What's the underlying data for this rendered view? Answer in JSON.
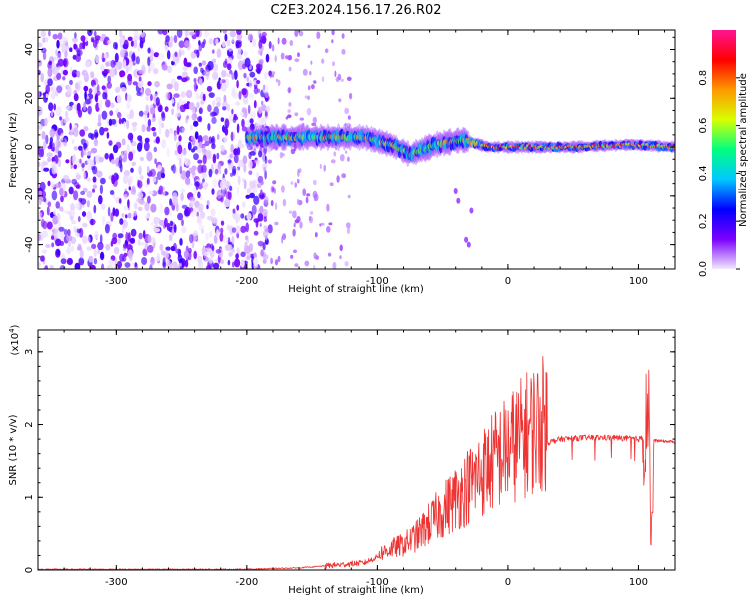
{
  "figure": {
    "title": "C2E3.2024.156.17.26.R02"
  },
  "chart_data": [
    {
      "type": "heatmap",
      "xlabel": "Height of straight line (km)",
      "ylabel": "Frequency (Hz)",
      "xlim": [
        -360,
        128
      ],
      "ylim": [
        -50,
        48
      ],
      "x_ticks": [
        -300,
        -200,
        -100,
        0,
        100
      ],
      "y_ticks": [
        -40,
        -20,
        0,
        20,
        40
      ],
      "colorbar": {
        "label": "Normalized spectral amplitude",
        "range": [
          0,
          1
        ],
        "ticks": [
          "0.0",
          "0.2",
          "0.4",
          "0.6",
          "0.8"
        ],
        "colormap": [
          "#f2e8ff",
          "#7a00ff",
          "#0000ff",
          "#00c8ff",
          "#00ff7f",
          "#d8ff00",
          "#ff9900",
          "#ff0000",
          "#ff1493"
        ]
      },
      "features": {
        "noise_region_x": [
          -360,
          -190
        ],
        "sparse_region_x": [
          -190,
          -120
        ],
        "signal_band": [
          {
            "x": -200,
            "f": 4
          },
          {
            "x": -150,
            "f": 4
          },
          {
            "x": -110,
            "f": 4
          },
          {
            "x": -90,
            "f": 1
          },
          {
            "x": -75,
            "f": -3
          },
          {
            "x": -55,
            "f": 1
          },
          {
            "x": -35,
            "f": 3
          },
          {
            "x": -15,
            "f": 0
          },
          {
            "x": 0,
            "f": 0
          },
          {
            "x": 50,
            "f": 0
          },
          {
            "x": 95,
            "f": 1
          },
          {
            "x": 128,
            "f": 0
          }
        ]
      }
    },
    {
      "type": "line",
      "xlabel": "Height of straight line (km)",
      "ylabel": "SNR (10 * v/v)",
      "y_multiplier": "(x10",
      "y_multiplier_exp": "4",
      "y_multiplier_close": ")",
      "xlim": [
        -360,
        128
      ],
      "ylim": [
        0,
        3.3
      ],
      "x_ticks": [
        -300,
        -200,
        -100,
        0,
        100
      ],
      "y_ticks": [
        0,
        1,
        2,
        3
      ],
      "color": "#ee3333",
      "series": [
        {
          "points": [
            [
              -360,
              0.01
            ],
            [
              -300,
              0.01
            ],
            [
              -250,
              0.01
            ],
            [
              -200,
              0.01
            ],
            [
              -160,
              0.03
            ],
            [
              -130,
              0.07
            ],
            [
              -110,
              0.1
            ],
            [
              -100,
              0.18
            ],
            [
              -90,
              0.25
            ],
            [
              -80,
              0.3
            ],
            [
              -70,
              0.4
            ],
            [
              -60,
              0.55
            ],
            [
              -50,
              0.7
            ],
            [
              -40,
              0.85
            ],
            [
              -30,
              1.0
            ],
            [
              -20,
              1.15
            ],
            [
              -10,
              1.3
            ],
            [
              0,
              1.42
            ],
            [
              10,
              1.55
            ],
            [
              20,
              1.68
            ],
            [
              30,
              1.75
            ],
            [
              40,
              1.8
            ],
            [
              60,
              1.82
            ],
            [
              80,
              1.82
            ],
            [
              100,
              1.8
            ],
            [
              105,
              1.82
            ],
            [
              108,
              2.5
            ],
            [
              110,
              0.2
            ],
            [
              112,
              1.78
            ],
            [
              128,
              1.76
            ]
          ]
        }
      ]
    }
  ]
}
